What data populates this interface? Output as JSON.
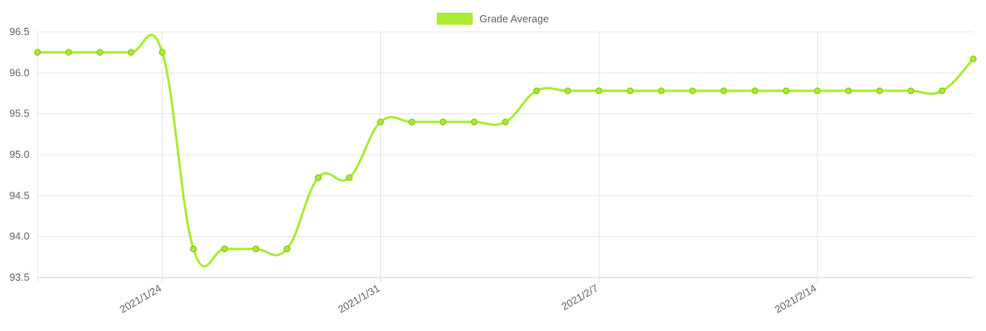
{
  "chart_data": {
    "type": "line",
    "legend": {
      "position": "top-center",
      "label": "Grade Average"
    },
    "series": [
      {
        "name": "Grade Average",
        "color": "#abeb35",
        "x": [
          "2021/1/20",
          "2021/1/21",
          "2021/1/22",
          "2021/1/23",
          "2021/1/24",
          "2021/1/25",
          "2021/1/26",
          "2021/1/27",
          "2021/1/28",
          "2021/1/29",
          "2021/1/30",
          "2021/1/31",
          "2021/2/1",
          "2021/2/2",
          "2021/2/3",
          "2021/2/4",
          "2021/2/5",
          "2021/2/6",
          "2021/2/7",
          "2021/2/8",
          "2021/2/9",
          "2021/2/10",
          "2021/2/11",
          "2021/2/12",
          "2021/2/13",
          "2021/2/14",
          "2021/2/15",
          "2021/2/16",
          "2021/2/17",
          "2021/2/18",
          "2021/2/19"
        ],
        "values": [
          96.25,
          96.25,
          96.25,
          96.25,
          96.25,
          93.85,
          93.85,
          93.85,
          93.85,
          94.72,
          94.72,
          95.4,
          95.4,
          95.4,
          95.4,
          95.4,
          95.78,
          95.78,
          95.78,
          95.78,
          95.78,
          95.78,
          95.78,
          95.78,
          95.78,
          95.78,
          95.78,
          95.78,
          95.78,
          95.78,
          96.17
        ]
      }
    ],
    "ylim": [
      93.5,
      96.5
    ],
    "yticks": [
      "96.5",
      "96.0",
      "95.5",
      "95.0",
      "94.5",
      "94.0",
      "93.5"
    ],
    "xticks": [
      "2021/1/24",
      "2021/1/31",
      "2021/2/7",
      "2021/2/14"
    ],
    "grid": true,
    "xlabel": "",
    "ylabel": ""
  }
}
